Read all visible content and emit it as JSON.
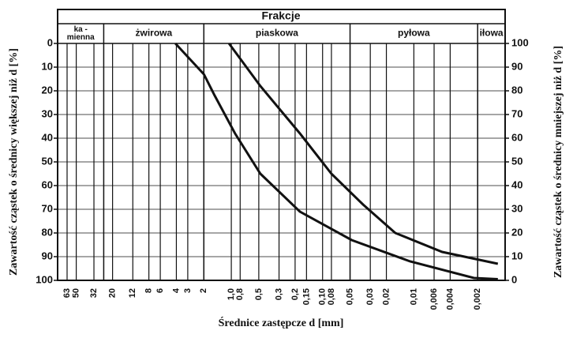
{
  "chart_data": {
    "type": "line",
    "header": "Frakcje",
    "fractions": [
      {
        "label": [
          "ka -",
          "mienna"
        ],
        "d_max": 80,
        "d_min": 25
      },
      {
        "label": [
          "żwirowa"
        ],
        "d_max": 25,
        "d_min": 2
      },
      {
        "label": [
          "piaskowa"
        ],
        "d_max": 2,
        "d_min": 0.05
      },
      {
        "label": [
          "pyłowa"
        ],
        "d_max": 0.05,
        "d_min": 0.002
      },
      {
        "label": [
          "iłowa"
        ],
        "d_max": 0.002,
        "d_min": 0.001
      }
    ],
    "x_label": "Średnice zastępcze d [mm]",
    "y_label": "Zawartość cząstek o średnicy większej niż d [%]",
    "y2_label": "Zawartość cząstek o średnicy mniejszej niż d [%]",
    "log_x": true,
    "xlim": [
      80,
      0.001
    ],
    "xticks": [
      63,
      50,
      32,
      20,
      12,
      8,
      6,
      4,
      3,
      2,
      {
        "value": 1,
        "label": "1,0"
      },
      {
        "value": 0.8,
        "label": "0,8"
      },
      {
        "value": 0.5,
        "label": "0,5"
      },
      {
        "value": 0.3,
        "label": "0,3"
      },
      {
        "value": 0.2,
        "label": "0,2"
      },
      {
        "value": 0.15,
        "label": "0,15"
      },
      {
        "value": 0.1,
        "label": "0,10"
      },
      {
        "value": 0.08,
        "label": "0,08"
      },
      {
        "value": 0.05,
        "label": "0,05"
      },
      {
        "value": 0.03,
        "label": "0,03"
      },
      {
        "value": 0.02,
        "label": "0,02"
      },
      {
        "value": 0.01,
        "label": "0,01"
      },
      {
        "value": 0.006,
        "label": "0,006"
      },
      {
        "value": 0.004,
        "label": "0,004"
      },
      {
        "value": 0.002,
        "label": "0,002"
      }
    ],
    "ylim": [
      0,
      100
    ],
    "yticks": [
      0,
      10,
      20,
      30,
      40,
      50,
      60,
      70,
      80,
      90,
      100
    ],
    "y2lim": [
      100,
      0
    ],
    "y2ticks": [
      100,
      90,
      80,
      70,
      60,
      50,
      40,
      30,
      20,
      10,
      0
    ],
    "grid": true,
    "series": [
      {
        "color": "#111111",
        "x": [
          4.1,
          2,
          1.52,
          0.91,
          0.48,
          0.177,
          0.048,
          0.011,
          0.0022,
          0.0012
        ],
        "values": [
          0,
          13,
          22,
          38,
          55,
          71,
          83,
          92,
          99,
          99.5
        ]
      },
      {
        "color": "#111111",
        "x": [
          1.06,
          0.48,
          0.177,
          0.08,
          0.036,
          0.016,
          0.0049,
          0.0012
        ],
        "values": [
          0,
          18,
          38,
          55,
          68,
          80,
          88,
          93
        ]
      }
    ]
  }
}
